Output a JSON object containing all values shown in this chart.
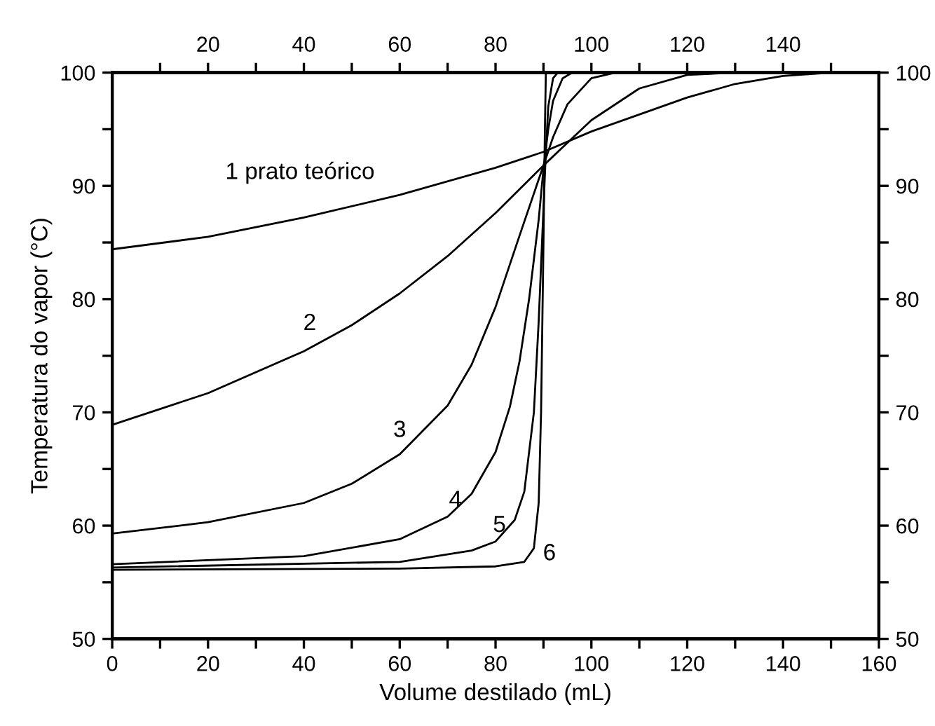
{
  "chart_data": {
    "type": "line",
    "xlabel": "Volume destilado (mL)",
    "ylabel": "Temperatura do vapor (°C)",
    "xlim": [
      0,
      160
    ],
    "ylim": [
      50,
      100
    ],
    "x2lim": [
      0,
      160
    ],
    "y2lim": [
      50,
      100
    ],
    "xticks": [
      0,
      {
        "value": 10,
        "label": null
      },
      20,
      {
        "value": 30,
        "label": null
      },
      40,
      {
        "value": 50,
        "label": null
      },
      60,
      {
        "value": 70,
        "label": null
      },
      80,
      {
        "value": 90,
        "label": null
      },
      100,
      {
        "value": 110,
        "label": null
      },
      120,
      {
        "value": 130,
        "label": null
      },
      140,
      {
        "value": 150,
        "label": null
      },
      160
    ],
    "x2ticks": [
      {
        "value": 10,
        "label": null
      },
      20,
      {
        "value": 30,
        "label": null
      },
      40,
      {
        "value": 50,
        "label": null
      },
      60,
      {
        "value": 70,
        "label": null
      },
      80,
      {
        "value": 90,
        "label": null
      },
      100,
      {
        "value": 110,
        "label": null
      },
      120,
      {
        "value": 130,
        "label": null
      },
      140,
      {
        "value": 150,
        "label": null
      }
    ],
    "yticks": [
      50,
      {
        "value": 55,
        "label": null
      },
      60,
      {
        "value": 65,
        "label": null
      },
      70,
      {
        "value": 75,
        "label": null
      },
      80,
      {
        "value": 85,
        "label": null
      },
      90,
      {
        "value": 95,
        "label": null
      },
      100
    ],
    "y2ticks": [
      50,
      {
        "value": 55,
        "label": null
      },
      60,
      {
        "value": 65,
        "label": null
      },
      70,
      {
        "value": 75,
        "label": null
      },
      80,
      {
        "value": 85,
        "label": null
      },
      90,
      {
        "value": 95,
        "label": null
      },
      100
    ],
    "grid": false,
    "marker": "none",
    "line_style": "solid",
    "series": [
      {
        "name": "1 prato teórico",
        "color": "#000000",
        "x": [
          0,
          20,
          40,
          60,
          80,
          90,
          100,
          110,
          120,
          130,
          140,
          150,
          160
        ],
        "values": [
          84.4,
          85.5,
          87.2,
          89.2,
          91.6,
          93.0,
          94.8,
          96.3,
          97.8,
          99.0,
          99.7,
          100,
          100
        ]
      },
      {
        "name": "2",
        "color": "#000000",
        "x": [
          0,
          20,
          40,
          50,
          60,
          70,
          80,
          90,
          95,
          100,
          110,
          120,
          130,
          160
        ],
        "values": [
          68.9,
          71.7,
          75.4,
          77.7,
          80.5,
          83.8,
          87.6,
          91.8,
          93.8,
          95.8,
          98.6,
          99.8,
          100,
          100
        ]
      },
      {
        "name": "3",
        "color": "#000000",
        "x": [
          0,
          20,
          40,
          50,
          60,
          70,
          75,
          80,
          85,
          90,
          92,
          95,
          100,
          105,
          160
        ],
        "values": [
          59.3,
          60.3,
          62.0,
          63.7,
          66.3,
          70.6,
          74.2,
          79.3,
          85.6,
          91.8,
          94.3,
          97.2,
          99.5,
          100,
          100
        ]
      },
      {
        "name": "4",
        "color": "#000000",
        "x": [
          0,
          40,
          60,
          70,
          75,
          80,
          83,
          85,
          87,
          89,
          90,
          91,
          92,
          94,
          96,
          160
        ],
        "values": [
          56.6,
          57.3,
          58.8,
          60.8,
          62.8,
          66.5,
          70.5,
          74.5,
          80,
          87,
          91.5,
          95,
          97.5,
          99.5,
          100,
          100
        ]
      },
      {
        "name": "5",
        "color": "#000000",
        "x": [
          0,
          60,
          75,
          80,
          84,
          86,
          88,
          89,
          90,
          90.5,
          91,
          92,
          93,
          160
        ],
        "values": [
          56.3,
          56.8,
          57.8,
          58.6,
          60.5,
          63,
          70,
          78,
          88,
          93,
          97,
          99.5,
          100,
          100
        ]
      },
      {
        "name": "6",
        "color": "#000000",
        "x": [
          0,
          60,
          80,
          86,
          88,
          89,
          89.5,
          90,
          90.3,
          90.5,
          160
        ],
        "values": [
          56.1,
          56.2,
          56.4,
          56.8,
          58,
          62,
          70,
          85,
          95,
          100,
          100
        ]
      }
    ]
  }
}
